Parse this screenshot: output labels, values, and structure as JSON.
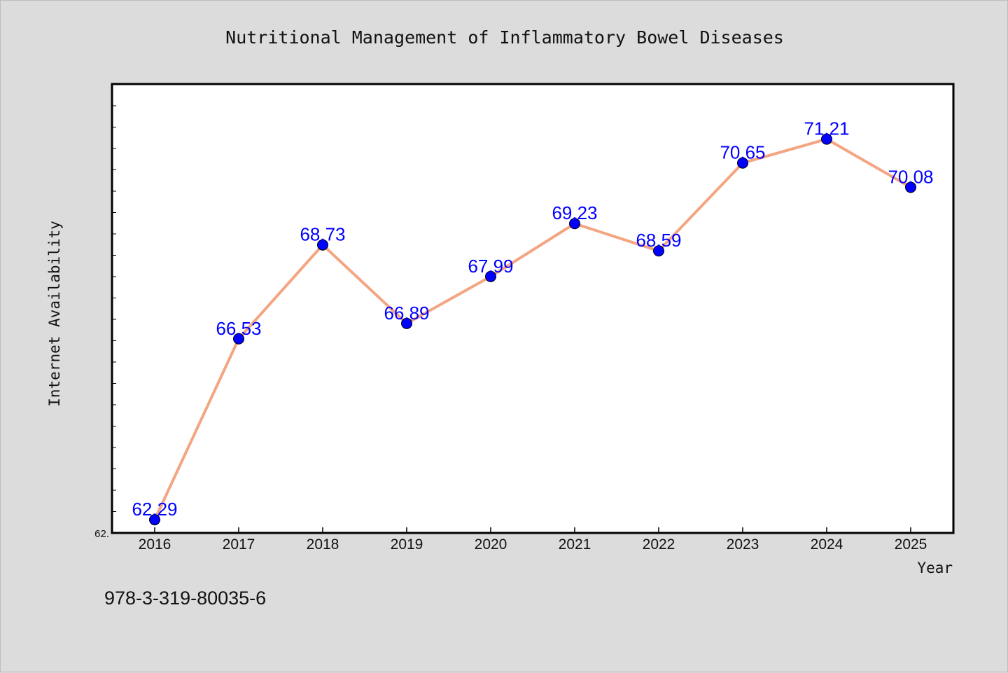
{
  "chart_data": {
    "type": "line",
    "title": "Nutritional Management of Inflammatory Bowel Diseases",
    "xlabel": "Year",
    "ylabel": "Internet Availability",
    "categories": [
      "2016",
      "2017",
      "2018",
      "2019",
      "2020",
      "2021",
      "2022",
      "2023",
      "2024",
      "2025"
    ],
    "series": [
      {
        "values": [
          62.29,
          66.53,
          68.73,
          66.89,
          67.99,
          69.23,
          68.59,
          70.65,
          71.21,
          70.08
        ],
        "labels": [
          "62.29",
          "66.53",
          "68.73",
          "66.89",
          "67.99",
          "69.23",
          "68.59",
          "70.65",
          "71.21",
          "70.08"
        ]
      }
    ],
    "ylim": [
      61.98,
      72.5
    ],
    "y_tick_labels": [
      "62."
    ],
    "grid": false,
    "line_color": "#f4a582",
    "marker_color": "#0000ff",
    "label_color": "#0000ff"
  },
  "footer_text": "978-3-319-80035-6"
}
